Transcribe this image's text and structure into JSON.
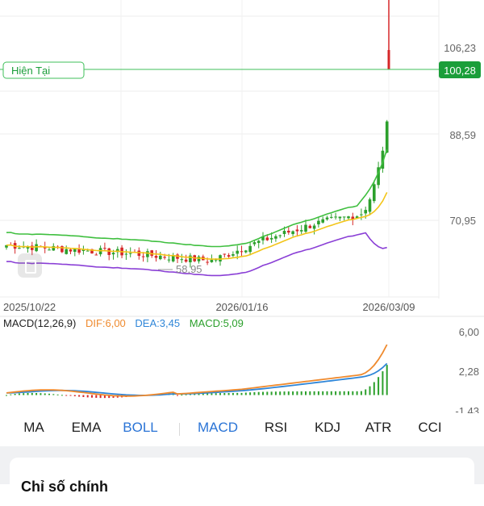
{
  "chart_data": {
    "type": "candlestick",
    "price": {
      "y_ticks": [
        "106,23",
        "88,59",
        "70,95"
      ],
      "current_label": "Hiện Tại",
      "current_value": "100,28",
      "min_label": "58,95",
      "x_ticks": [
        "2025/10/22",
        "2026/01/16",
        "2026/03/09"
      ]
    },
    "macd": {
      "legend": {
        "title": "MACD(12,26,9)",
        "dif": "DIF:6,00",
        "dea": "DEA:3,45",
        "macd": "MACD:5,09"
      },
      "y_ticks": [
        "6,00",
        "2,28",
        "-1,43"
      ]
    }
  },
  "colors": {
    "up": "#2ca02c",
    "down": "#d62728",
    "boll_upper": "#3fbf3f",
    "boll_mid": "#f3c519",
    "boll_lower": "#8a3fd6",
    "dif": "#ef8a2e",
    "dea": "#2f86d8",
    "accent": "#2a74d6",
    "current_badge": "#1b9e3a"
  },
  "tabs": [
    {
      "label": "MA",
      "active": false
    },
    {
      "label": "EMA",
      "active": false
    },
    {
      "label": "BOLL",
      "active": true
    },
    {
      "label": "MACD",
      "active": true
    },
    {
      "label": "RSI",
      "active": false
    },
    {
      "label": "KDJ",
      "active": false
    },
    {
      "label": "ATR",
      "active": false
    },
    {
      "label": "CCI",
      "active": false
    }
  ],
  "bottom": {
    "title": "Chỉ số chính"
  }
}
